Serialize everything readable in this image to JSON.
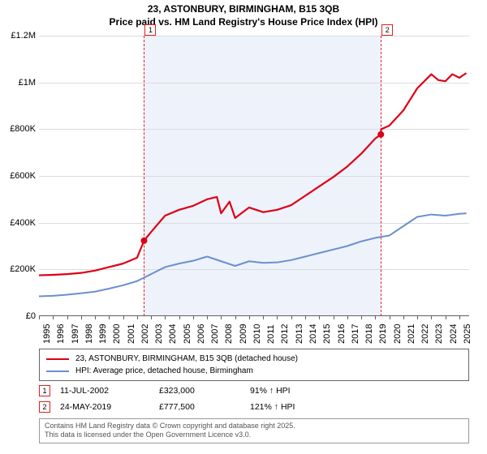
{
  "title": {
    "line1": "23, ASTONBURY, BIRMINGHAM, B15 3QB",
    "line2": "Price paid vs. HM Land Registry's House Price Index (HPI)"
  },
  "chart": {
    "type": "line",
    "background_color": "#ffffff",
    "shaded_color": "#eef2fb",
    "grid_color": "#dcdcdc",
    "axis_color": "#606060",
    "x_years": [
      1995,
      1996,
      1997,
      1998,
      1999,
      2000,
      2001,
      2002,
      2003,
      2004,
      2005,
      2006,
      2007,
      2008,
      2009,
      2010,
      2011,
      2012,
      2013,
      2014,
      2015,
      2016,
      2017,
      2018,
      2019,
      2020,
      2021,
      2022,
      2023,
      2024,
      2025
    ],
    "x_range": [
      1995,
      2025.7
    ],
    "y_range": [
      0,
      1200000
    ],
    "y_ticks": [
      0,
      200000,
      400000,
      600000,
      800000,
      1000000,
      1200000
    ],
    "y_tick_labels": [
      "£0",
      "£200K",
      "£400K",
      "£600K",
      "£800K",
      "£1M",
      "£1.2M"
    ],
    "shaded_start_year": 2002.5,
    "shaded_end_year": 2019.4,
    "marker1_year": 2002.5,
    "marker2_year": 2019.4,
    "marker_line_color": "#e02020",
    "series": {
      "pricepaid": {
        "color": "#dd0015",
        "width": 2.2,
        "data": [
          [
            1995,
            175000
          ],
          [
            1996,
            177000
          ],
          [
            1997,
            180000
          ],
          [
            1998,
            185000
          ],
          [
            1999,
            195000
          ],
          [
            2000,
            210000
          ],
          [
            2001,
            225000
          ],
          [
            2002,
            250000
          ],
          [
            2002.5,
            323000
          ],
          [
            2003,
            360000
          ],
          [
            2004,
            430000
          ],
          [
            2005,
            455000
          ],
          [
            2006,
            472000
          ],
          [
            2007,
            500000
          ],
          [
            2007.7,
            510000
          ],
          [
            2008,
            440000
          ],
          [
            2008.6,
            490000
          ],
          [
            2009,
            420000
          ],
          [
            2010,
            465000
          ],
          [
            2011,
            445000
          ],
          [
            2012,
            455000
          ],
          [
            2013,
            475000
          ],
          [
            2014,
            515000
          ],
          [
            2015,
            555000
          ],
          [
            2016,
            595000
          ],
          [
            2017,
            640000
          ],
          [
            2018,
            695000
          ],
          [
            2019,
            760000
          ],
          [
            2019.4,
            777500
          ],
          [
            2019.42,
            800000
          ],
          [
            2020,
            815000
          ],
          [
            2021,
            880000
          ],
          [
            2022,
            975000
          ],
          [
            2023,
            1035000
          ],
          [
            2023.5,
            1010000
          ],
          [
            2024,
            1005000
          ],
          [
            2024.5,
            1035000
          ],
          [
            2025,
            1020000
          ],
          [
            2025.5,
            1040000
          ]
        ],
        "sale_points": [
          [
            2002.5,
            323000
          ],
          [
            2019.4,
            777500
          ]
        ],
        "point_radius": 4,
        "point_color": "#dd0015"
      },
      "hpi": {
        "color": "#6a8fcf",
        "width": 2,
        "data": [
          [
            1995,
            85000
          ],
          [
            1996,
            87000
          ],
          [
            1997,
            92000
          ],
          [
            1998,
            98000
          ],
          [
            1999,
            105000
          ],
          [
            2000,
            118000
          ],
          [
            2001,
            132000
          ],
          [
            2002,
            150000
          ],
          [
            2003,
            180000
          ],
          [
            2004,
            210000
          ],
          [
            2005,
            225000
          ],
          [
            2006,
            237000
          ],
          [
            2007,
            255000
          ],
          [
            2008,
            235000
          ],
          [
            2009,
            215000
          ],
          [
            2010,
            235000
          ],
          [
            2011,
            228000
          ],
          [
            2012,
            230000
          ],
          [
            2013,
            240000
          ],
          [
            2014,
            255000
          ],
          [
            2015,
            270000
          ],
          [
            2016,
            285000
          ],
          [
            2017,
            300000
          ],
          [
            2018,
            320000
          ],
          [
            2019,
            335000
          ],
          [
            2020,
            345000
          ],
          [
            2021,
            385000
          ],
          [
            2022,
            425000
          ],
          [
            2023,
            435000
          ],
          [
            2024,
            430000
          ],
          [
            2025,
            438000
          ],
          [
            2025.5,
            440000
          ]
        ]
      }
    }
  },
  "legend": {
    "item1": {
      "color": "#dd0015",
      "label": "23, ASTONBURY, BIRMINGHAM, B15 3QB (detached house)"
    },
    "item2": {
      "color": "#6a8fcf",
      "label": "HPI: Average price, detached house, Birmingham"
    }
  },
  "transactions": {
    "tx1": {
      "num": "1",
      "date": "11-JUL-2002",
      "price": "£323,000",
      "delta": "91% ↑ HPI"
    },
    "tx2": {
      "num": "2",
      "date": "24-MAY-2019",
      "price": "£777,500",
      "delta": "121% ↑ HPI"
    }
  },
  "footnote": {
    "line1": "Contains HM Land Registry data © Crown copyright and database right 2025.",
    "line2": "This data is licensed under the Open Government Licence v3.0."
  },
  "fonts": {
    "title_size": 12,
    "axis_size": 11,
    "legend_size": 10,
    "footnote_size": 9
  }
}
